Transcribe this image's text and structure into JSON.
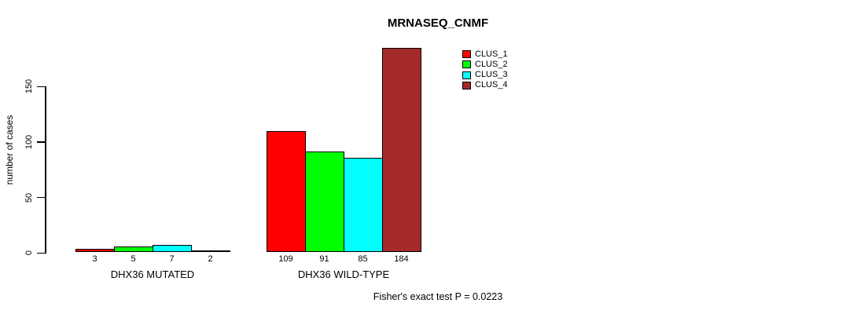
{
  "title": "MRNASEQ_CNMF",
  "y_axis": {
    "label": "number of cases",
    "ticks": [
      0,
      50,
      100,
      150
    ]
  },
  "caption": "Fisher's exact test P = 0.0223",
  "colors": {
    "clus_1": "#FF0000",
    "clus_2": "#00FF00",
    "clus_3": "#00FFFF",
    "clus_4": "#A52A2A",
    "axis": "#000000",
    "background": "#FFFFFF"
  },
  "legend": {
    "items": [
      {
        "label": "CLUS_1",
        "color": "#FF0000"
      },
      {
        "label": "CLUS_2",
        "color": "#00FF00"
      },
      {
        "label": "CLUS_3",
        "color": "#00FFFF"
      },
      {
        "label": "CLUS_4",
        "color": "#A52A2A"
      }
    ]
  },
  "chart_data": {
    "type": "bar",
    "title": "MRNASEQ_CNMF",
    "xlabel": "",
    "ylabel": "number of cases",
    "categories": [
      "DHX36 MUTATED",
      "DHX36 WILD-TYPE"
    ],
    "series": [
      {
        "name": "CLUS_1",
        "color": "#FF0000",
        "values": [
          3,
          109
        ]
      },
      {
        "name": "CLUS_2",
        "color": "#00FF00",
        "values": [
          5,
          91
        ]
      },
      {
        "name": "CLUS_3",
        "color": "#00FFFF",
        "values": [
          7,
          85
        ]
      },
      {
        "name": "CLUS_4",
        "color": "#A52A2A",
        "values": [
          2,
          184
        ]
      }
    ],
    "bar_value_labels": [
      [
        3,
        5,
        7,
        2
      ],
      [
        109,
        91,
        85,
        184
      ]
    ],
    "yticks": [
      0,
      50,
      100,
      150
    ],
    "ylim": [
      0,
      188
    ],
    "grid": false,
    "legend_position": "upper-right-inside",
    "bar_border_color": "#000000",
    "annotation": "Fisher's exact test P = 0.0223"
  }
}
